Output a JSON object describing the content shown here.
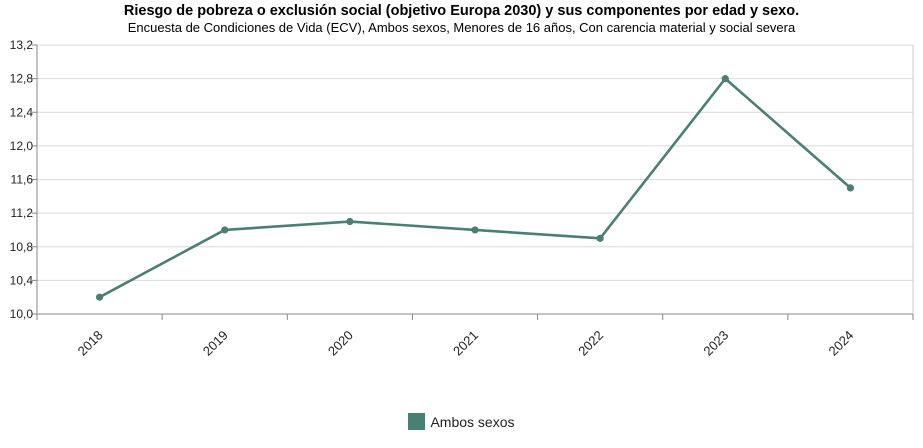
{
  "chart_data": {
    "type": "line",
    "title": "Riesgo de pobreza o exclusión social (objetivo Europa 2030) y sus componentes por edad y sexo.",
    "subtitle": "Encuesta de Condiciones de Vida (ECV), Ambos sexos, Menores de 16 años, Con carencia material y social severa",
    "categories": [
      "2018",
      "2019",
      "2020",
      "2021",
      "2022",
      "2023",
      "2024"
    ],
    "series": [
      {
        "name": "Ambos sexos",
        "values": [
          10.2,
          11.0,
          11.1,
          11.0,
          10.9,
          12.8,
          11.5
        ],
        "color": "#4a7f76"
      }
    ],
    "ylim": [
      10.0,
      13.2
    ],
    "yticks": [
      "10,0",
      "10,4",
      "10,8",
      "11,2",
      "11,6",
      "12,0",
      "12,4",
      "12,8",
      "13,2"
    ],
    "grid": true,
    "legend_position": "bottom-center"
  }
}
